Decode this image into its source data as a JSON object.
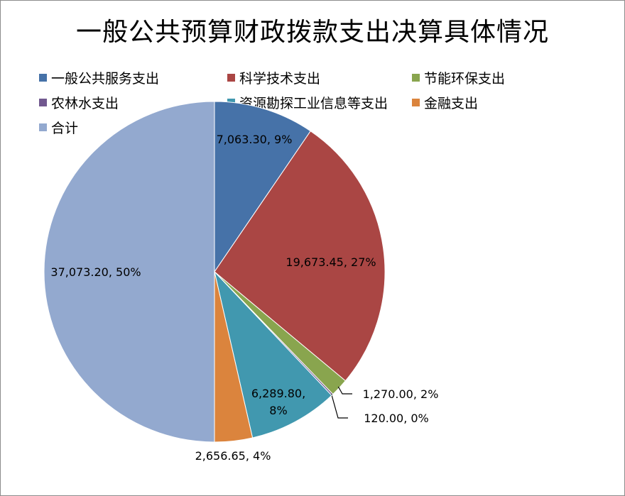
{
  "chart_data": {
    "type": "pie",
    "title": "一般公共预算财政拨款支出决算具体情况",
    "slices": [
      {
        "name": "一般公共服务支出",
        "value": 7063.3,
        "label": "7,063.30, 9%",
        "color": "#4672a8"
      },
      {
        "name": "科学技术支出",
        "value": 19673.45,
        "label": "19,673.45, 27%",
        "color": "#aa4644"
      },
      {
        "name": "节能环保支出",
        "value": 1270.0,
        "label": "1,270.00, 2%",
        "color": "#89a54e"
      },
      {
        "name": "农林水支出",
        "value": 120.0,
        "label": "120.00, 0%",
        "color": "#71588f"
      },
      {
        "name": "资源勘探工业信息等支出",
        "value": 6289.8,
        "label": "6,289.80, 8%",
        "label_lines": [
          "6,289.80,",
          "8%"
        ],
        "color": "#4198af"
      },
      {
        "name": "金融支出",
        "value": 2656.65,
        "label": "2,656.65, 4%",
        "color": "#db843d"
      },
      {
        "name": "合计",
        "value": 37073.2,
        "label": "37,073.20, 50%",
        "color": "#93a9cf"
      }
    ],
    "legend_position": "top"
  }
}
